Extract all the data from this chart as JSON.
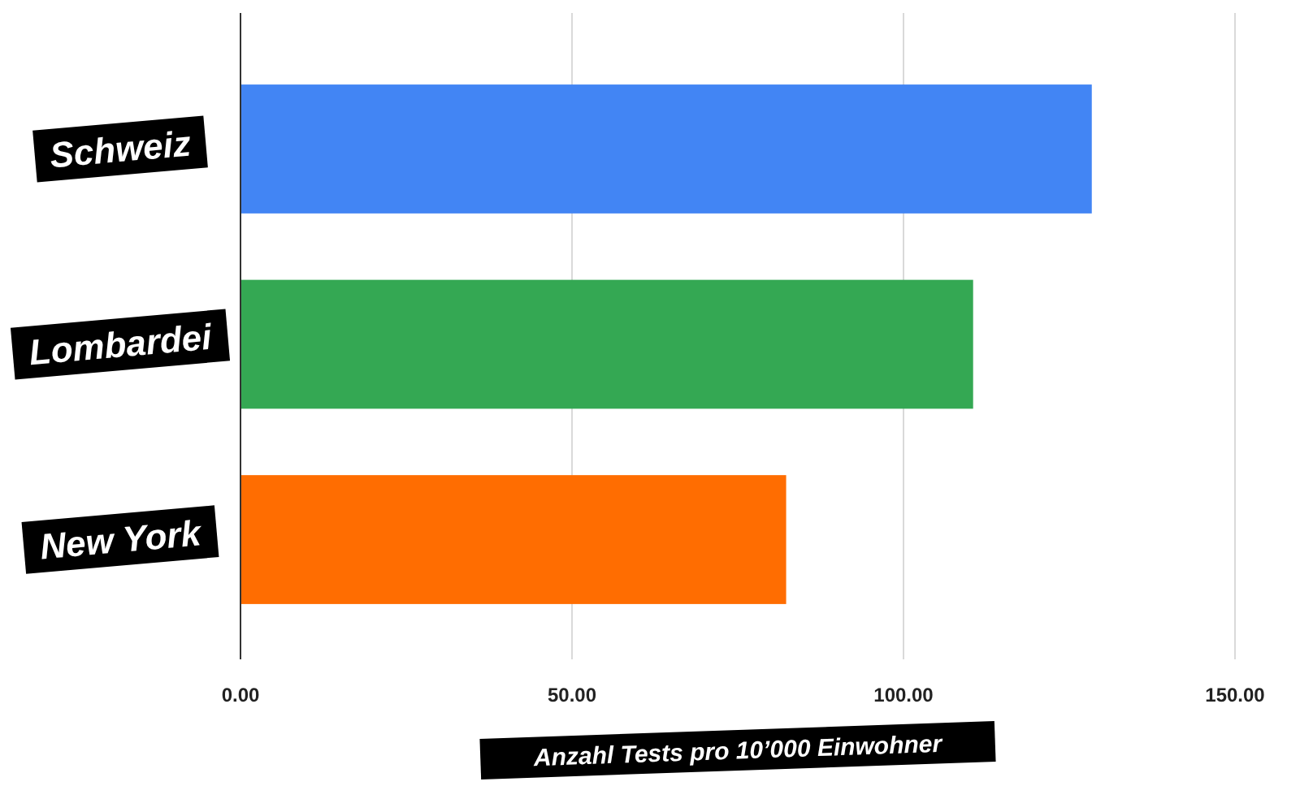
{
  "chart_data": {
    "type": "bar",
    "orientation": "horizontal",
    "xlabel": "Anzahl Tests pro 10’000 Einwohner",
    "categories": [
      "Schweiz",
      "Lombardei",
      "New York"
    ],
    "values": [
      128.4,
      110.5,
      82.3
    ],
    "colors": [
      "#4285f4",
      "#34a853",
      "#ff6d01"
    ],
    "xlim": [
      0,
      150
    ],
    "xticks": [
      {
        "value": 0,
        "label": "0.00"
      },
      {
        "value": 50,
        "label": "50.00"
      },
      {
        "value": 100,
        "label": "100.00"
      },
      {
        "value": 150,
        "label": "150.00"
      }
    ],
    "grid": "x"
  }
}
